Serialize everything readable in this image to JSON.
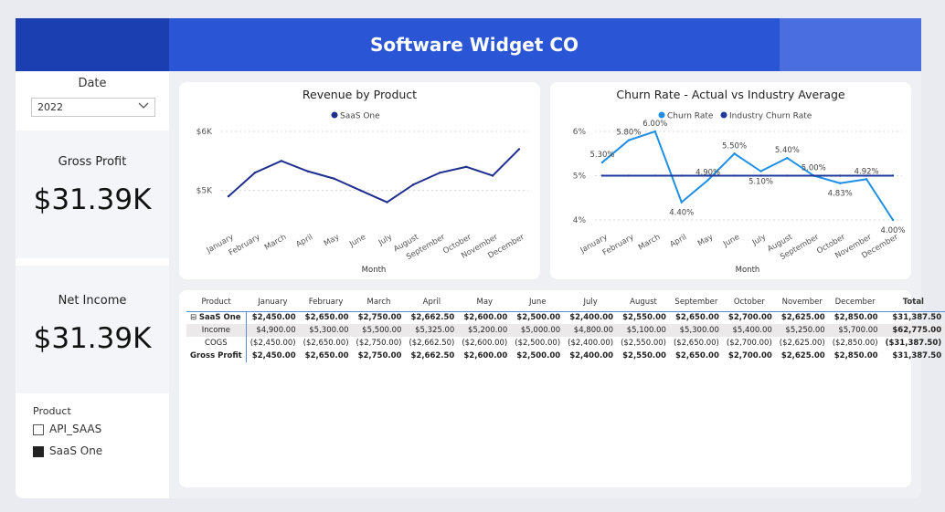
{
  "header": {
    "title": "Software Widget CO"
  },
  "filters": {
    "date_label": "Date",
    "date_value": "2022",
    "product_label": "Product",
    "products": [
      {
        "label": "API_SAAS",
        "checked": false
      },
      {
        "label": "SaaS One",
        "checked": true
      }
    ]
  },
  "kpis": {
    "gross_profit_label": "Gross Profit",
    "gross_profit_value": "$31.39K",
    "net_income_label": "Net Income",
    "net_income_value": "$31.39K"
  },
  "colors": {
    "header": "#2a56d6",
    "revenue_line": "#1f2f8f",
    "churn": "#1f8fe5",
    "industry": "#1e3a9e"
  },
  "chart_data": [
    {
      "type": "line",
      "title": "Revenue by Product",
      "xlabel": "Month",
      "ylabel": "",
      "categories": [
        "January",
        "February",
        "March",
        "April",
        "May",
        "June",
        "July",
        "August",
        "September",
        "October",
        "November",
        "December"
      ],
      "series": [
        {
          "name": "SaaS One",
          "values": [
            4900,
            5300,
            5500,
            5325,
            5200,
            5000,
            4800,
            5100,
            5300,
            5400,
            5250,
            5700
          ]
        }
      ],
      "yticks": [
        "$5K",
        "$6K"
      ],
      "ylim": [
        4500,
        6000
      ],
      "grid": true,
      "legend": "top"
    },
    {
      "type": "line",
      "title": "Churn Rate - Actual vs Industry Average",
      "xlabel": "Month",
      "categories": [
        "January",
        "February",
        "March",
        "April",
        "May",
        "June",
        "July",
        "August",
        "September",
        "October",
        "November",
        "December"
      ],
      "series": [
        {
          "name": "Churn Rate",
          "values": [
            5.3,
            5.8,
            6.0,
            4.4,
            4.9,
            5.5,
            5.1,
            5.4,
            5.0,
            4.83,
            4.92,
            4.0
          ]
        },
        {
          "name": "Industry Churn Rate",
          "values": [
            5,
            5,
            5,
            5,
            5,
            5,
            5,
            5,
            5,
            5,
            5,
            5
          ]
        }
      ],
      "data_labels": [
        "5.30%",
        "5.80%",
        "6.00%",
        "4.40%",
        "4.90%",
        "5.50%",
        "5.10%",
        "5.40%",
        "5.00%",
        "4.83%",
        "4.92%",
        "4.00%"
      ],
      "yticks": [
        "4%",
        "5%",
        "6%"
      ],
      "ylim": [
        4,
        6
      ],
      "grid": true,
      "legend": "top"
    }
  ],
  "matrix": {
    "headers": [
      "Product",
      "January",
      "February",
      "March",
      "April",
      "May",
      "June",
      "July",
      "August",
      "September",
      "October",
      "November",
      "December",
      "Total"
    ],
    "rows": [
      {
        "label": "SaaS One",
        "expand": "⊟",
        "cells": [
          "$2,450.00",
          "$2,650.00",
          "$2,750.00",
          "$2,662.50",
          "$2,600.00",
          "$2,500.00",
          "$2,400.00",
          "$2,550.00",
          "$2,650.00",
          "$2,700.00",
          "$2,625.00",
          "$2,850.00",
          "$31,387.50"
        ]
      },
      {
        "label": "Income",
        "cells": [
          "$4,900.00",
          "$5,300.00",
          "$5,500.00",
          "$5,325.00",
          "$5,200.00",
          "$5,000.00",
          "$4,800.00",
          "$5,100.00",
          "$5,300.00",
          "$5,400.00",
          "$5,250.00",
          "$5,700.00",
          "$62,775.00"
        ]
      },
      {
        "label": "COGS",
        "cells": [
          "($2,450.00)",
          "($2,650.00)",
          "($2,750.00)",
          "($2,662.50)",
          "($2,600.00)",
          "($2,500.00)",
          "($2,400.00)",
          "($2,550.00)",
          "($2,650.00)",
          "($2,700.00)",
          "($2,625.00)",
          "($2,850.00)",
          "($31,387.50)"
        ]
      },
      {
        "label": "Gross Profit",
        "cells": [
          "$2,450.00",
          "$2,650.00",
          "$2,750.00",
          "$2,662.50",
          "$2,600.00",
          "$2,500.00",
          "$2,400.00",
          "$2,550.00",
          "$2,650.00",
          "$2,700.00",
          "$2,625.00",
          "$2,850.00",
          "$31,387.50"
        ]
      }
    ]
  }
}
